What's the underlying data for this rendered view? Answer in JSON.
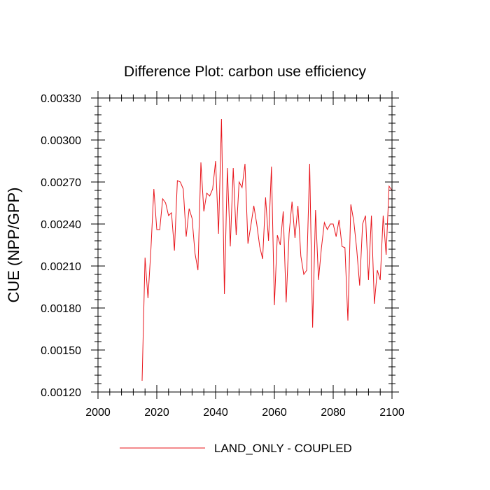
{
  "chart_data": {
    "type": "line",
    "title": "Difference Plot: carbon use efficiency",
    "ylabel": "CUE  (NPP/GPP)",
    "xlabel": "",
    "xlim": [
      2000,
      2100
    ],
    "ylim": [
      0.0012,
      0.0033
    ],
    "x_ticks": [
      2000,
      2020,
      2040,
      2060,
      2080,
      2100
    ],
    "x_tick_labels": [
      "2000",
      "2020",
      "2040",
      "2060",
      "2080",
      "2100"
    ],
    "y_ticks": [
      0.0012,
      0.0015,
      0.0018,
      0.0021,
      0.0024,
      0.0027,
      0.003,
      0.0033
    ],
    "y_tick_labels": [
      "0.00120",
      "0.00150",
      "0.00180",
      "0.00210",
      "0.00240",
      "0.00270",
      "0.00300",
      "0.00330"
    ],
    "grid": false,
    "legend_position": "bottom",
    "series": [
      {
        "name": "LAND_ONLY - COUPLED",
        "color": "#e8141b",
        "x": [
          2015,
          2016,
          2017,
          2018,
          2019,
          2020,
          2021,
          2022,
          2023,
          2024,
          2025,
          2026,
          2027,
          2028,
          2029,
          2030,
          2031,
          2032,
          2033,
          2034,
          2035,
          2036,
          2037,
          2038,
          2039,
          2040,
          2041,
          2042,
          2043,
          2044,
          2045,
          2046,
          2047,
          2048,
          2049,
          2050,
          2051,
          2052,
          2053,
          2054,
          2055,
          2056,
          2057,
          2058,
          2059,
          2060,
          2061,
          2062,
          2063,
          2064,
          2065,
          2066,
          2067,
          2068,
          2069,
          2070,
          2071,
          2072,
          2073,
          2074,
          2075,
          2076,
          2077,
          2078,
          2079,
          2080,
          2081,
          2082,
          2083,
          2084,
          2085,
          2086,
          2087,
          2088,
          2089,
          2090,
          2091,
          2092,
          2093,
          2094,
          2095,
          2096,
          2097,
          2098,
          2099,
          2100
        ],
        "values": [
          0.00128,
          0.00216,
          0.00187,
          0.00222,
          0.00265,
          0.00236,
          0.00236,
          0.00258,
          0.00255,
          0.00246,
          0.00248,
          0.00221,
          0.00271,
          0.0027,
          0.00265,
          0.00231,
          0.00251,
          0.00244,
          0.00219,
          0.00207,
          0.00284,
          0.00249,
          0.00262,
          0.0026,
          0.00265,
          0.00285,
          0.00233,
          0.00315,
          0.0019,
          0.0028,
          0.00224,
          0.0028,
          0.00232,
          0.0027,
          0.00266,
          0.00283,
          0.00226,
          0.00239,
          0.00253,
          0.0024,
          0.00224,
          0.00215,
          0.00259,
          0.00228,
          0.00281,
          0.00182,
          0.00232,
          0.00225,
          0.00249,
          0.00184,
          0.00233,
          0.00256,
          0.0023,
          0.00253,
          0.00217,
          0.00204,
          0.00207,
          0.00283,
          0.00166,
          0.0025,
          0.002,
          0.00223,
          0.00241,
          0.00236,
          0.0024,
          0.0024,
          0.00231,
          0.00243,
          0.00224,
          0.00223,
          0.00171,
          0.00254,
          0.00242,
          0.00222,
          0.00196,
          0.0024,
          0.00246,
          0.002,
          0.00246,
          0.00183,
          0.00207,
          0.002,
          0.00246,
          0.00218,
          0.00267,
          0.00264
        ]
      }
    ]
  }
}
